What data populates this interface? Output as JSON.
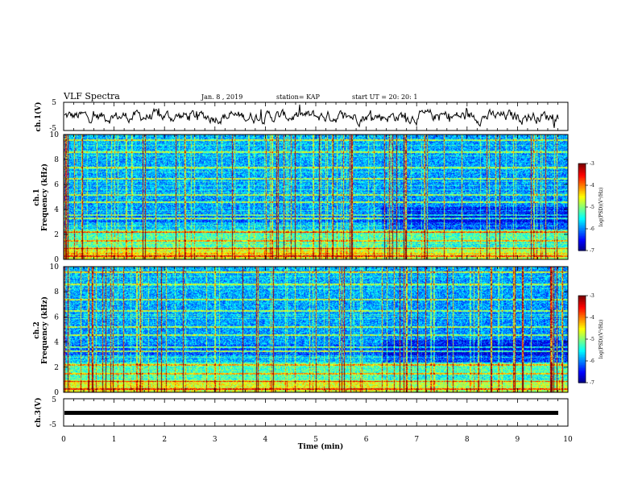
{
  "header": {
    "title": "VLF Spectra",
    "date": "Jan. 8 , 2019",
    "station": "station= KAP",
    "start": "start UT = 20: 20: 1"
  },
  "chart_data": [
    {
      "type": "line",
      "panel": "ch1-waveform",
      "ylabel": "ch.1(V)",
      "ylim": [
        -5,
        5
      ],
      "y_ticks": [
        "5",
        "-5"
      ],
      "xlim": [
        0,
        10
      ],
      "series": [
        {
          "values_description": "noisy waveform oscillating roughly between -2.5 and 3.5 V"
        }
      ]
    },
    {
      "type": "heatmap",
      "panel": "ch1-spectrogram",
      "ylabel_line1": "ch.1",
      "ylabel_line2": "Frequency (kHz)",
      "ylim": [
        0,
        10
      ],
      "y_ticks": [
        "0",
        "2",
        "4",
        "6",
        "8",
        "10"
      ],
      "xlim": [
        0,
        10
      ],
      "transition_time_min": 6.3,
      "colorbar": {
        "label": "log(PSD)(V²/Hz)",
        "range": [
          -7,
          -3
        ],
        "ticks": [
          "-3",
          "-4",
          "-5",
          "-6",
          "-7"
        ]
      }
    },
    {
      "type": "heatmap",
      "panel": "ch2-spectrogram",
      "ylabel_line1": "ch.2",
      "ylabel_line2": "Frequency (kHz)",
      "ylim": [
        0,
        10
      ],
      "y_ticks": [
        "0",
        "2",
        "4",
        "6",
        "8",
        "10"
      ],
      "xlim": [
        0,
        10
      ],
      "transition_time_min": 6.3,
      "colorbar": {
        "label": "log(PSD)(V²/Hz)",
        "range": [
          -7,
          -3
        ],
        "ticks": [
          "-3",
          "-4",
          "-5",
          "-6",
          "-7"
        ]
      }
    },
    {
      "type": "line",
      "panel": "ch3-waveform",
      "ylabel": "ch.3(V)",
      "ylim": [
        -5,
        5
      ],
      "y_ticks": [
        "5",
        "-5"
      ],
      "xlim": [
        0,
        10
      ],
      "series": [
        {
          "constant_value": -1.5
        }
      ]
    }
  ],
  "xaxis": {
    "label": "Time (min)",
    "ticks": [
      "0",
      "1",
      "2",
      "3",
      "4",
      "5",
      "6",
      "7",
      "8",
      "9",
      "10"
    ],
    "range": [
      0,
      10
    ]
  },
  "colors": {
    "axes": "#000000",
    "waveform": "#000000",
    "ch3_trace": "#000000"
  }
}
